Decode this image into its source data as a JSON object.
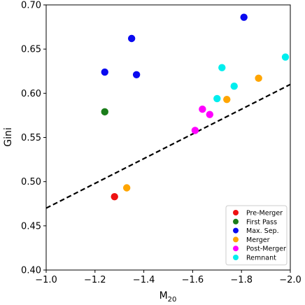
{
  "chart_data": {
    "type": "scatter",
    "xlabel": "M",
    "xlabel_sub": "20",
    "ylabel": "Gini",
    "xlim": [
      -1.0,
      -2.0
    ],
    "ylim": [
      0.4,
      0.7
    ],
    "x_axis_inverted": true,
    "grid": false,
    "legend_position": "lower-right",
    "xticks": [
      -1.0,
      -1.2,
      -1.4,
      -1.6,
      -1.8,
      -2.0
    ],
    "xtick_labels": [
      "−1.0",
      "−1.2",
      "−1.4",
      "−1.6",
      "−1.8",
      "−2.0"
    ],
    "yticks": [
      0.4,
      0.45,
      0.5,
      0.55,
      0.6,
      0.65,
      0.7
    ],
    "ytick_labels": [
      "0.40",
      "0.45",
      "0.50",
      "0.55",
      "0.60",
      "0.65",
      "0.70"
    ],
    "series": [
      {
        "name": "Pre-Merger",
        "color": "#ee1111",
        "points": [
          [
            -1.28,
            0.483
          ]
        ]
      },
      {
        "name": "First Pass",
        "color": "#1a7d1a",
        "points": [
          [
            -1.24,
            0.579
          ]
        ]
      },
      {
        "name": "Max. Sep.",
        "color": "#0a0af0",
        "points": [
          [
            -1.24,
            0.624
          ],
          [
            -1.35,
            0.662
          ],
          [
            -1.37,
            0.621
          ],
          [
            -1.81,
            0.686
          ]
        ]
      },
      {
        "name": "Merger",
        "color": "#ffa500",
        "points": [
          [
            -1.33,
            0.493
          ],
          [
            -1.74,
            0.593
          ],
          [
            -1.87,
            0.617
          ]
        ]
      },
      {
        "name": "Post-Merger",
        "color": "#ff00ff",
        "points": [
          [
            -1.61,
            0.558
          ],
          [
            -1.64,
            0.582
          ],
          [
            -1.67,
            0.576
          ]
        ]
      },
      {
        "name": "Remnant",
        "color": "#00eeee",
        "points": [
          [
            -1.7,
            0.594
          ],
          [
            -1.72,
            0.629
          ],
          [
            -1.77,
            0.608
          ],
          [
            -1.98,
            0.641
          ]
        ]
      }
    ],
    "reference_line": {
      "style": "dashed",
      "color": "#000000",
      "points": [
        [
          -1.0,
          0.47
        ],
        [
          -2.0,
          0.61
        ]
      ]
    }
  }
}
